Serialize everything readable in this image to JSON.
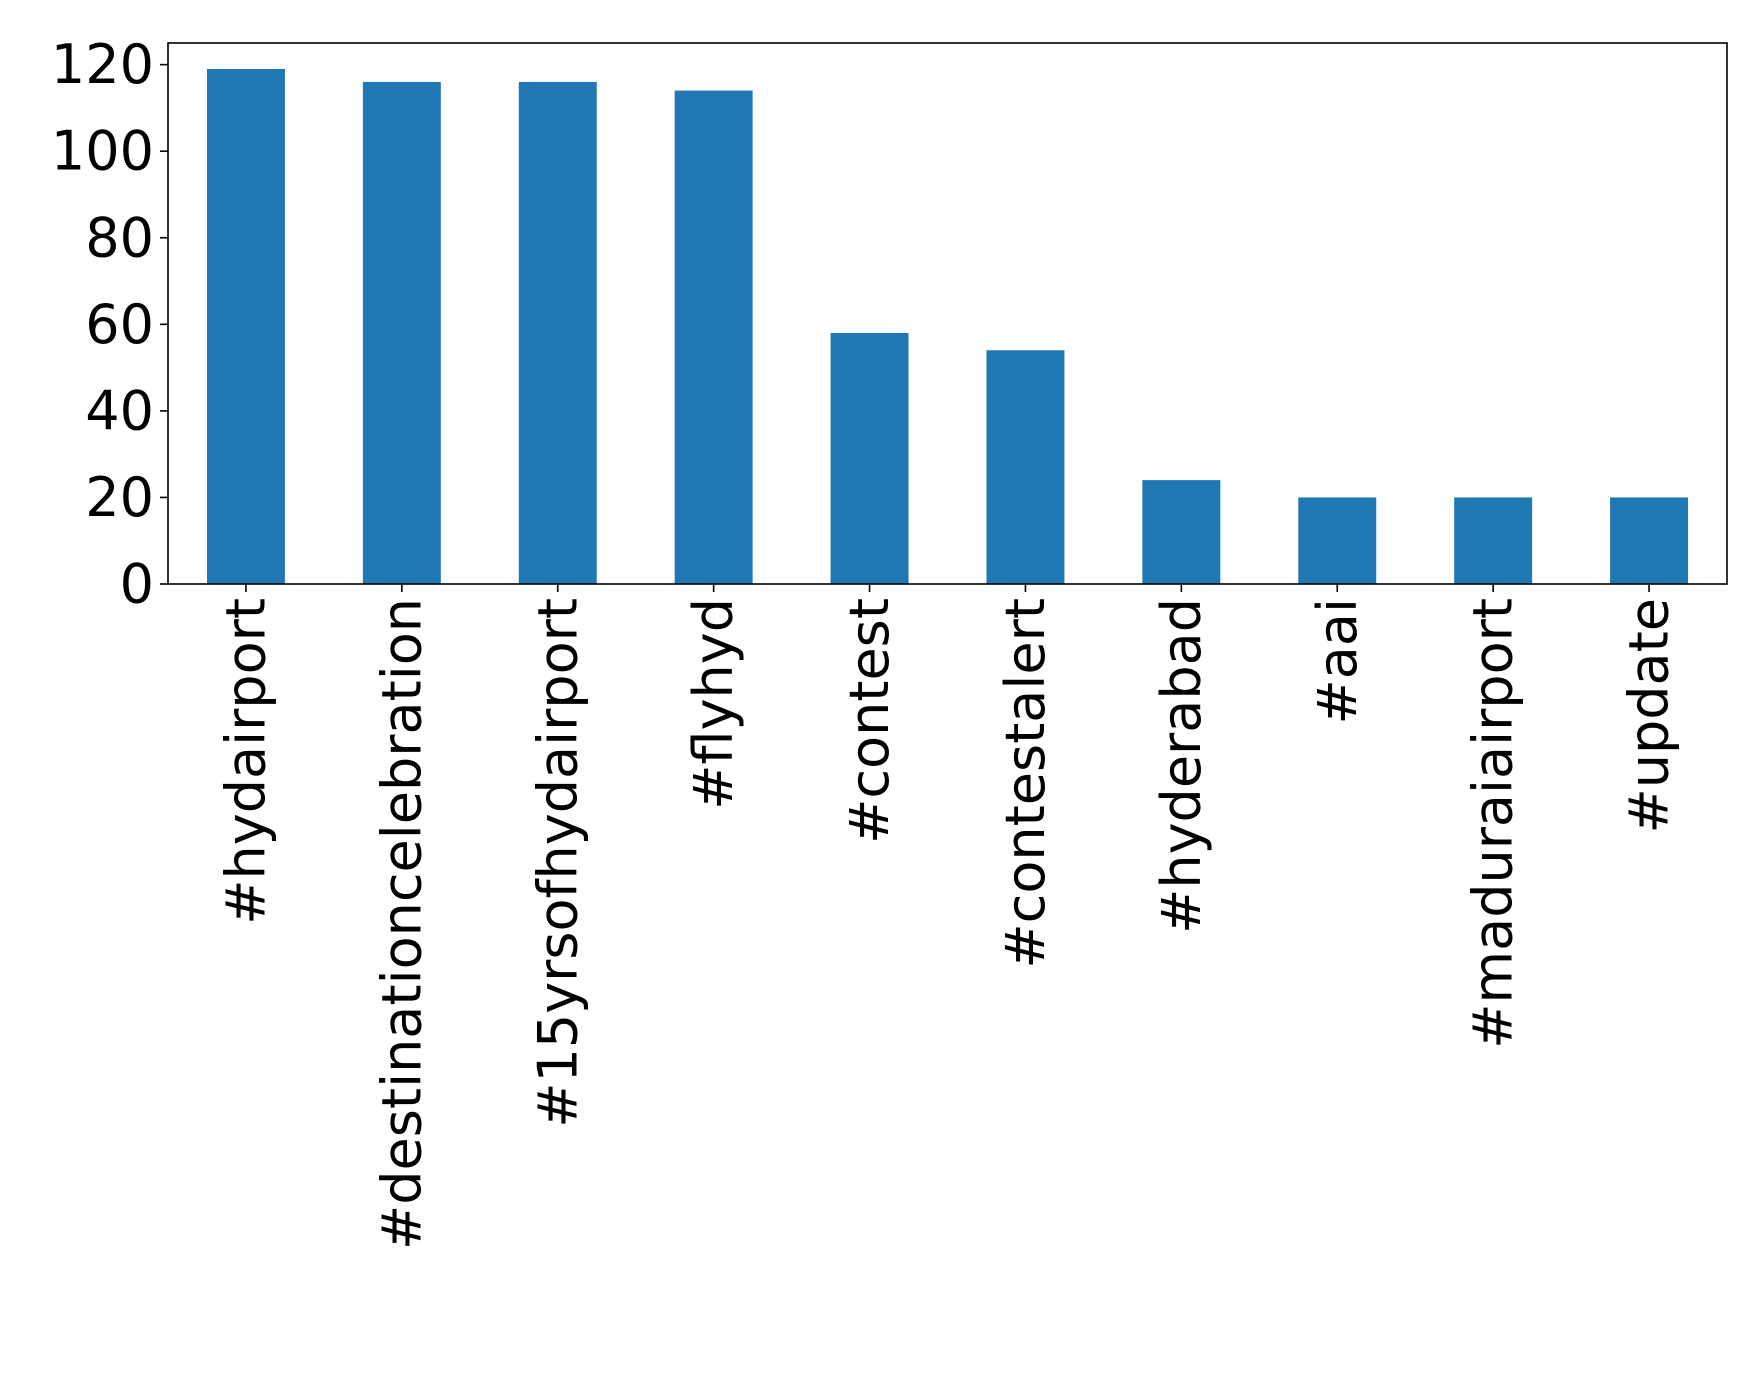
{
  "chart_data": {
    "type": "bar",
    "categories": [
      "#hydairport",
      "#destinationcelebration",
      "#15yrsofhydairport",
      "#flyhyd",
      "#contest",
      "#contestalert",
      "#hyderabad",
      "#aai",
      "#maduraiairport",
      "#update"
    ],
    "values": [
      119,
      116,
      116,
      114,
      58,
      54,
      24,
      20,
      20,
      20
    ],
    "ylim": [
      0,
      125
    ],
    "yticks": [
      "0",
      "20",
      "40",
      "60",
      "80",
      "100",
      "120"
    ],
    "bar_color": "#1f77b4",
    "grid": false,
    "legend": "none"
  }
}
